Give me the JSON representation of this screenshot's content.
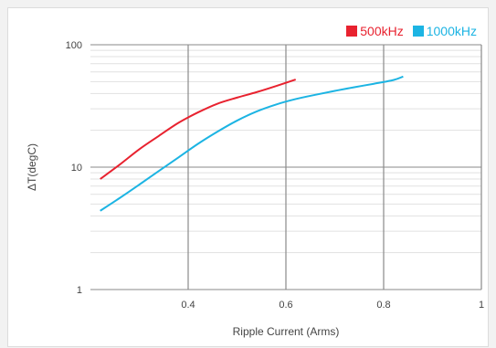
{
  "chart_data": {
    "type": "line",
    "title": "",
    "xlabel": "Ripple Current (Arms)",
    "ylabel": "ΔT(degC)",
    "xlim": [
      0.2,
      1.0
    ],
    "ylim": [
      1,
      100
    ],
    "yscale": "log",
    "grid": true,
    "legend_position": "top-right",
    "x_ticks": [
      {
        "value": 0.4,
        "label": "0.4"
      },
      {
        "value": 0.6,
        "label": "0.6"
      },
      {
        "value": 0.8,
        "label": "0.8"
      },
      {
        "value": 1.0,
        "label": "1"
      }
    ],
    "y_ticks": [
      {
        "value": 1,
        "label": "1"
      },
      {
        "value": 10,
        "label": "10"
      },
      {
        "value": 100,
        "label": "100"
      }
    ],
    "series": [
      {
        "name": "500kHz",
        "color": "#e8222f",
        "points": [
          [
            0.22,
            8.0
          ],
          [
            0.26,
            10.5
          ],
          [
            0.3,
            14.0
          ],
          [
            0.34,
            18.0
          ],
          [
            0.38,
            23.0
          ],
          [
            0.42,
            28.0
          ],
          [
            0.46,
            33.0
          ],
          [
            0.5,
            37.0
          ],
          [
            0.54,
            41.0
          ],
          [
            0.58,
            46.0
          ],
          [
            0.62,
            52.0
          ]
        ]
      },
      {
        "name": "1000kHz",
        "color": "#1cb4e3",
        "points": [
          [
            0.22,
            4.4
          ],
          [
            0.26,
            5.6
          ],
          [
            0.3,
            7.2
          ],
          [
            0.34,
            9.3
          ],
          [
            0.38,
            12.0
          ],
          [
            0.42,
            15.5
          ],
          [
            0.46,
            19.5
          ],
          [
            0.5,
            24.0
          ],
          [
            0.54,
            28.5
          ],
          [
            0.58,
            32.5
          ],
          [
            0.62,
            36.0
          ],
          [
            0.66,
            39.0
          ],
          [
            0.7,
            42.0
          ],
          [
            0.74,
            45.0
          ],
          [
            0.78,
            48.0
          ],
          [
            0.82,
            51.5
          ],
          [
            0.84,
            55.0
          ]
        ]
      }
    ]
  }
}
